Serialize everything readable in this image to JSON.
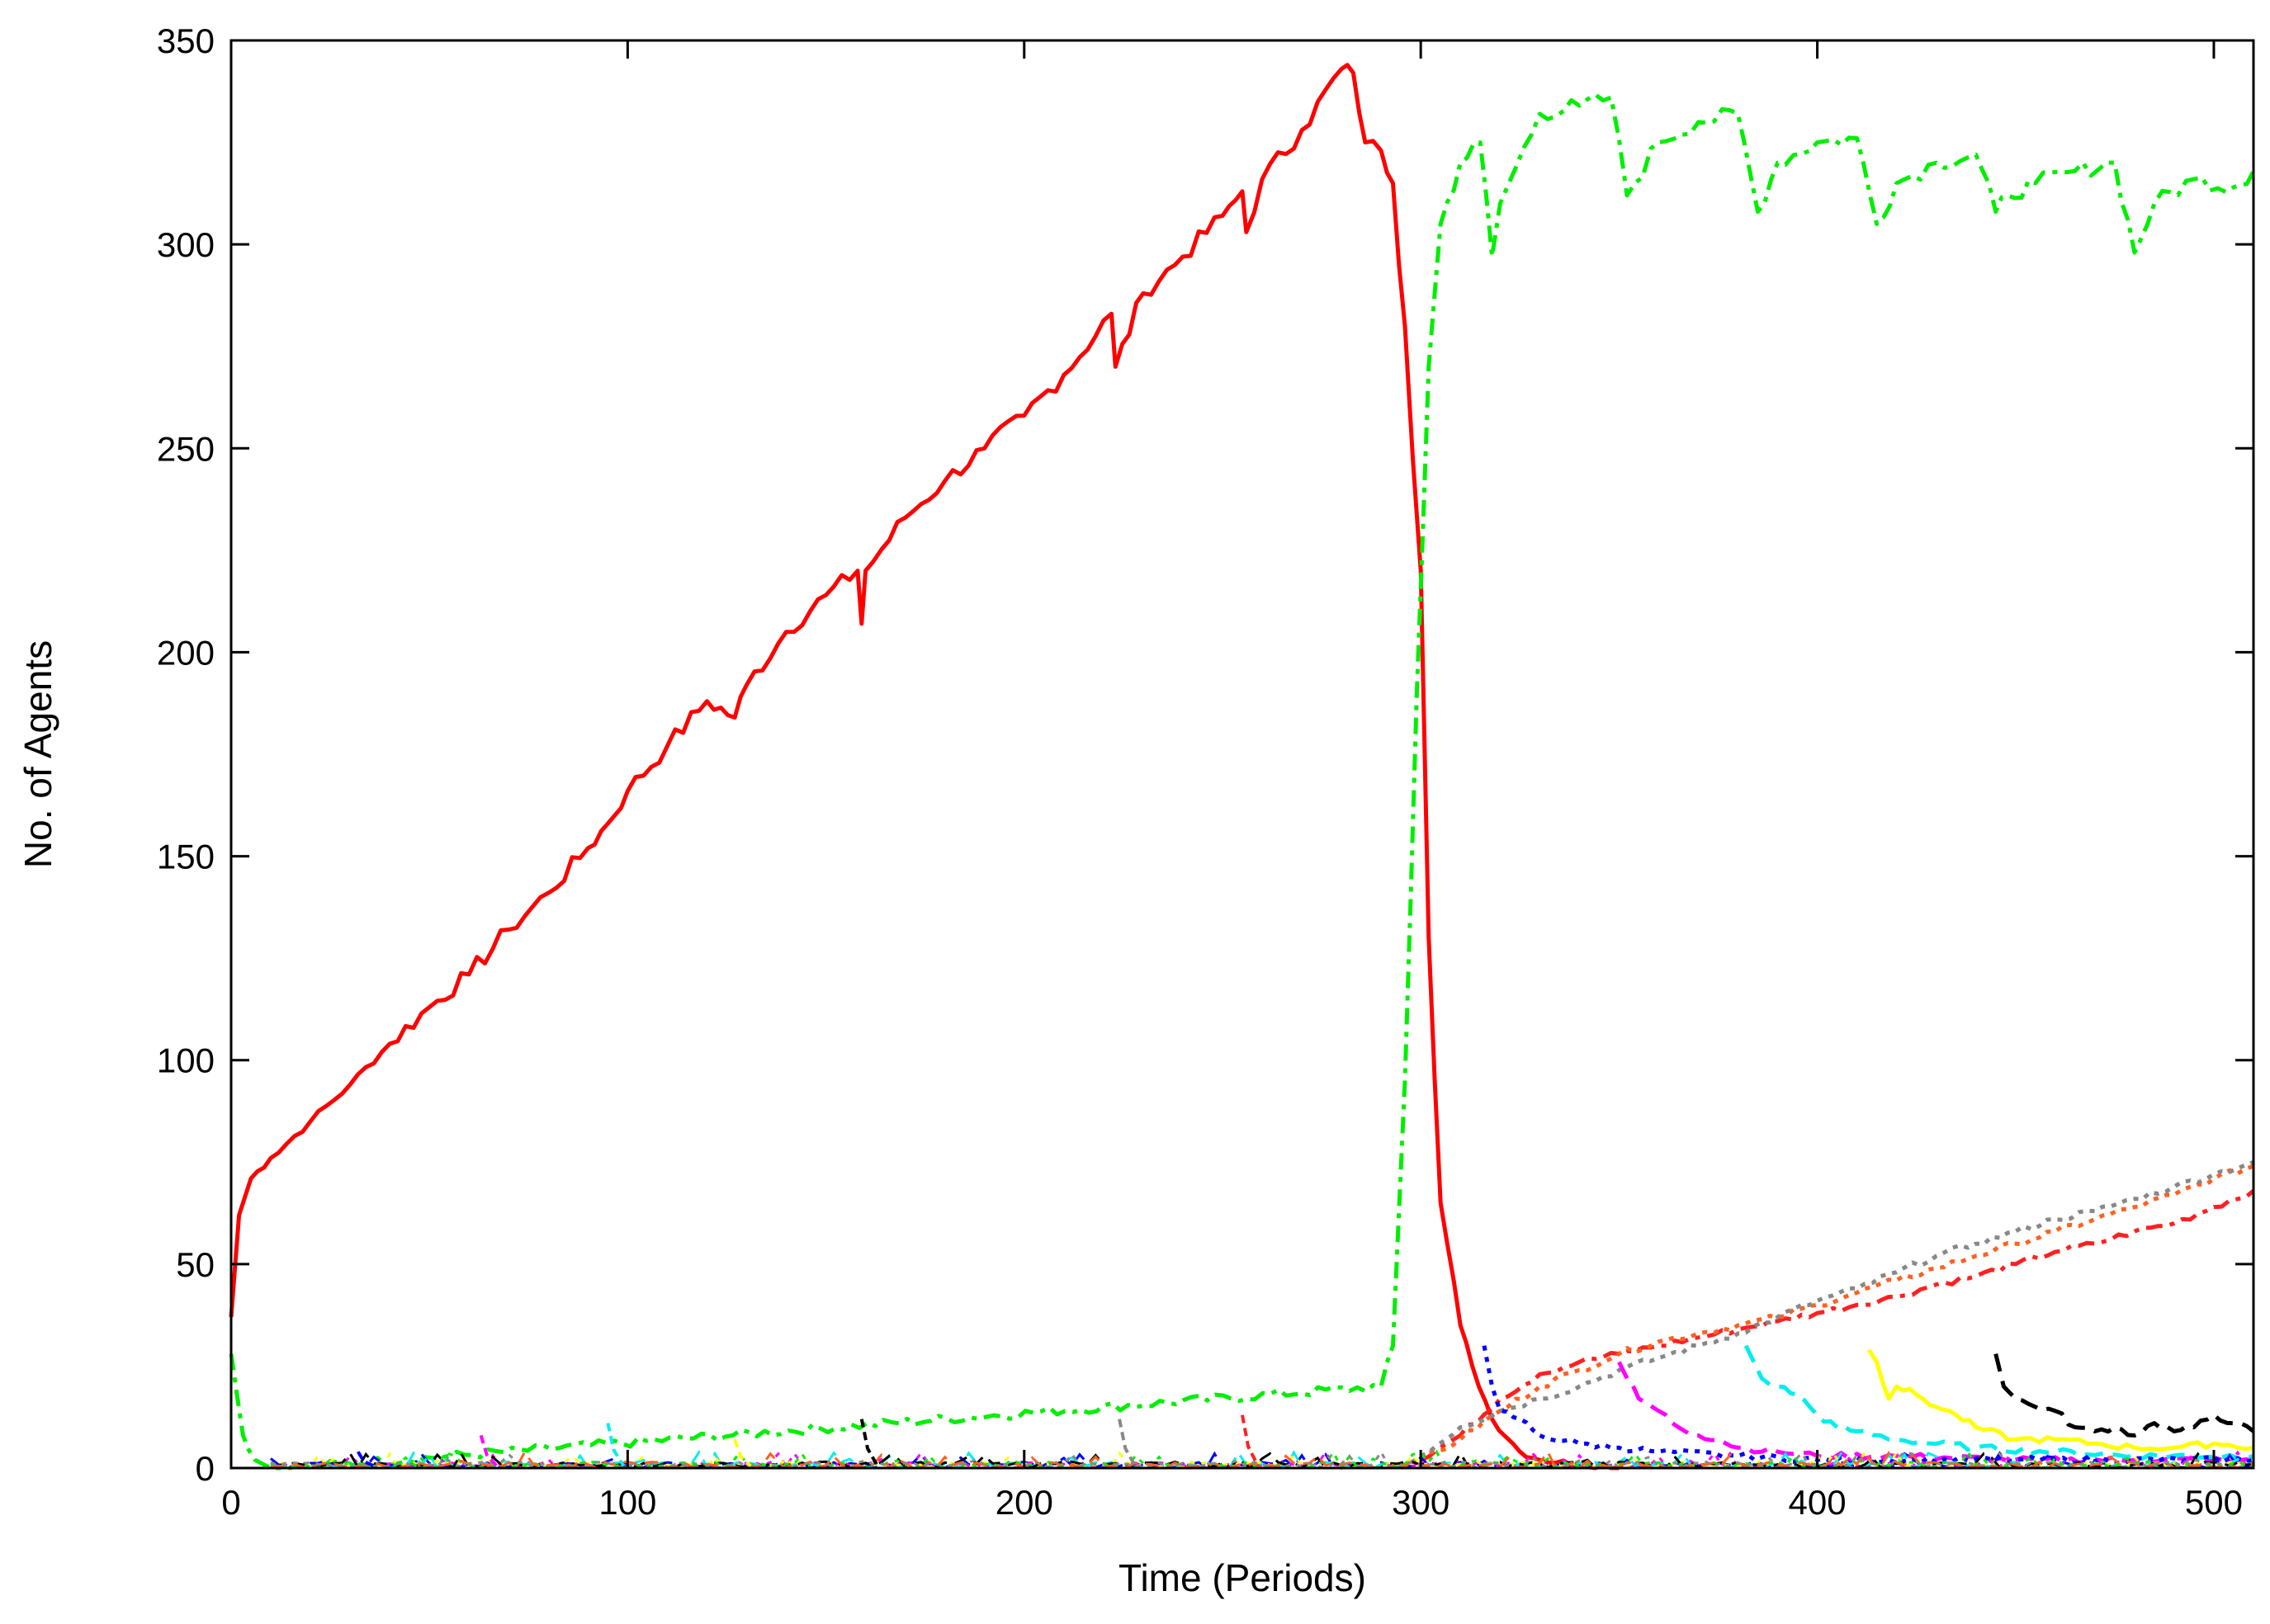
{
  "chart_data": {
    "type": "line",
    "xlabel": "Time (Periods)",
    "ylabel": "No. of Agents",
    "xlim": [
      0,
      510
    ],
    "ylim": [
      0,
      350
    ],
    "xticks": [
      0,
      100,
      200,
      300,
      400,
      500
    ],
    "yticks": [
      0,
      50,
      100,
      150,
      200,
      250,
      300,
      350
    ],
    "grid": false,
    "legend": "none",
    "series": [
      {
        "color": "#ff0000",
        "style": "solid",
        "x": [
          0,
          2,
          5,
          10,
          20,
          30,
          40,
          50,
          60,
          70,
          80,
          90,
          95,
          100,
          110,
          120,
          127,
          130,
          140,
          150,
          158,
          159,
          160,
          170,
          180,
          190,
          200,
          210,
          222,
          223,
          230,
          240,
          250,
          255,
          256,
          260,
          270,
          280,
          283,
          286,
          290,
          293,
          296,
          300,
          302,
          305,
          310,
          313,
          318,
          325,
          330,
          340,
          350
        ],
        "y": [
          37,
          62,
          71,
          76,
          85,
          94,
          104,
          113,
          121,
          132,
          141,
          152,
          158,
          166,
          177,
          188,
          184,
          192,
          205,
          214,
          220,
          207,
          220,
          233,
          242,
          250,
          258,
          268,
          283,
          270,
          288,
          297,
          307,
          313,
          303,
          316,
          328,
          343,
          342,
          325,
          323,
          315,
          280,
          220,
          130,
          65,
          35,
          25,
          12,
          4,
          2,
          1,
          0
        ]
      },
      {
        "color": "#00ee00",
        "style": "dashdot",
        "x": [
          0,
          3,
          6,
          10,
          15,
          290,
          293,
          296,
          299,
          302,
          305,
          310,
          315,
          318,
          320,
          330,
          340,
          348,
          352,
          360,
          370,
          380,
          385,
          390,
          400,
          410,
          415,
          420,
          430,
          440,
          445,
          448,
          455,
          465,
          475,
          480,
          485,
          495,
          505,
          510
        ],
        "y": [
          28,
          8,
          2,
          0,
          0,
          20,
          30,
          95,
          190,
          270,
          305,
          320,
          325,
          297,
          310,
          332,
          334,
          336,
          312,
          325,
          330,
          332,
          308,
          320,
          325,
          326,
          305,
          315,
          320,
          322,
          308,
          312,
          315,
          318,
          320,
          298,
          310,
          316,
          314,
          318
        ]
      },
      {
        "color": "#ff2020",
        "style": "dashdot",
        "x": [
          300,
          310,
          320,
          330,
          340,
          350,
          360,
          370,
          380,
          390,
          400,
          410,
          420,
          430,
          440,
          450,
          460,
          470,
          480,
          490,
          500,
          510
        ],
        "y": [
          2,
          8,
          17,
          23,
          26,
          28,
          30,
          32,
          34,
          36,
          38,
          40,
          42,
          45,
          47,
          50,
          53,
          55,
          58,
          60,
          64,
          68
        ]
      },
      {
        "color": "#ff6020",
        "style": "dotted",
        "x": [
          300,
          310,
          320,
          330,
          340,
          350,
          360,
          370,
          380,
          390,
          400,
          410,
          420,
          430,
          440,
          450,
          460,
          470,
          480,
          490,
          500,
          510
        ],
        "y": [
          2,
          7,
          14,
          20,
          24,
          28,
          31,
          33,
          35,
          37,
          40,
          43,
          46,
          49,
          52,
          55,
          58,
          61,
          64,
          67,
          71,
          74
        ]
      },
      {
        "color": "#888888",
        "style": "dotted",
        "x": [
          295,
          300,
          310,
          320,
          330,
          340,
          350,
          360,
          370,
          380,
          390,
          400,
          410,
          420,
          430,
          440,
          450,
          460,
          470,
          480,
          490,
          500,
          510
        ],
        "y": [
          0,
          3,
          10,
          14,
          17,
          20,
          24,
          27,
          30,
          33,
          37,
          41,
          44,
          48,
          52,
          55,
          58,
          61,
          63,
          66,
          69,
          72,
          75
        ]
      },
      {
        "color": "#ff00ff",
        "style": "dashed",
        "x": [
          350,
          352,
          355,
          360,
          365,
          370,
          375,
          380,
          390,
          400,
          420,
          450,
          480,
          510
        ],
        "y": [
          26,
          22,
          17,
          14,
          10,
          8,
          7,
          5,
          4,
          3,
          3,
          2,
          2,
          2
        ]
      },
      {
        "color": "#00eeee",
        "style": "dashed",
        "x": [
          382,
          384,
          386,
          390,
          395,
          400,
          405,
          410,
          420,
          440,
          460,
          480,
          510
        ],
        "y": [
          30,
          26,
          22,
          20,
          18,
          13,
          10,
          9,
          7,
          5,
          4,
          3,
          3
        ]
      },
      {
        "color": "#ffff00",
        "style": "solid",
        "x": [
          413,
          415,
          418,
          420,
          425,
          430,
          435,
          440,
          450,
          460,
          470,
          480,
          490,
          500,
          510
        ],
        "y": [
          29,
          26,
          17,
          20,
          18,
          15,
          13,
          10,
          7,
          7,
          6,
          5,
          5,
          6,
          5
        ]
      },
      {
        "color": "#000000",
        "style": "dashed",
        "x": [
          445,
          447,
          450,
          455,
          460,
          465,
          470,
          475,
          480,
          485,
          490,
          495,
          500,
          505,
          510
        ],
        "y": [
          28,
          20,
          17,
          15,
          14,
          10,
          9,
          10,
          8,
          11,
          9,
          10,
          13,
          11,
          9
        ]
      },
      {
        "color": "#0000ff",
        "style": "dotted",
        "x": [
          316,
          318,
          320,
          325,
          330,
          340,
          350,
          360,
          380,
          400,
          450,
          510
        ],
        "y": [
          30,
          20,
          14,
          12,
          8,
          6,
          5,
          4,
          3,
          2,
          2,
          2
        ]
      }
    ]
  }
}
